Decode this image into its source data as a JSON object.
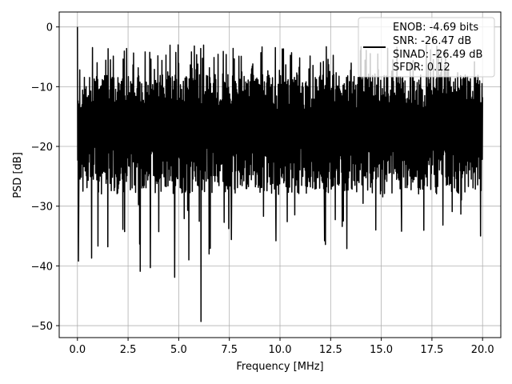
{
  "chart_data": {
    "type": "line",
    "title": "",
    "xlabel": "Frequency [MHz]",
    "ylabel": "PSD [dB]",
    "xlim": [
      -0.9,
      20.9
    ],
    "ylim": [
      -52.0,
      2.5
    ],
    "xticks": [
      0.0,
      2.5,
      5.0,
      7.5,
      10.0,
      12.5,
      15.0,
      17.5,
      20.0
    ],
    "xtick_labels": [
      "0.0",
      "2.5",
      "5.0",
      "7.5",
      "10.0",
      "12.5",
      "15.0",
      "17.5",
      "20.0"
    ],
    "yticks": [
      0,
      -10,
      -20,
      -30,
      -40,
      -50
    ],
    "ytick_labels": [
      "0",
      "−10",
      "−20",
      "−30",
      "−40",
      "−50"
    ],
    "grid": true,
    "legend": {
      "placement": "top-right",
      "entries": [
        "ENOB: -4.69 bits",
        "SNR: -26.47 dB",
        "SINAD: -26.49 dB",
        "SFDR: 0.12"
      ]
    },
    "series": [
      {
        "color": "#000000",
        "x_range": [
          0.0,
          20.0
        ],
        "typical_range_db": [
          -26,
          -8
        ],
        "peak": {
          "x": 0.0,
          "y": 0.0
        },
        "deep_nulls": [
          {
            "x": 0.05,
            "y": -39.2
          },
          {
            "x": 0.7,
            "y": -38.7
          },
          {
            "x": 1.5,
            "y": -36.8
          },
          {
            "x": 3.1,
            "y": -40.9
          },
          {
            "x": 3.6,
            "y": -40.3
          },
          {
            "x": 4.8,
            "y": -41.9
          },
          {
            "x": 5.5,
            "y": -39.0
          },
          {
            "x": 6.1,
            "y": -49.3
          },
          {
            "x": 6.5,
            "y": -38.0
          },
          {
            "x": 7.6,
            "y": -35.6
          },
          {
            "x": 9.8,
            "y": -35.8
          },
          {
            "x": 12.2,
            "y": -35.8
          },
          {
            "x": 13.3,
            "y": -37.1
          },
          {
            "x": 16.0,
            "y": -34.2
          },
          {
            "x": 19.9,
            "y": -35.0
          }
        ]
      }
    ]
  }
}
